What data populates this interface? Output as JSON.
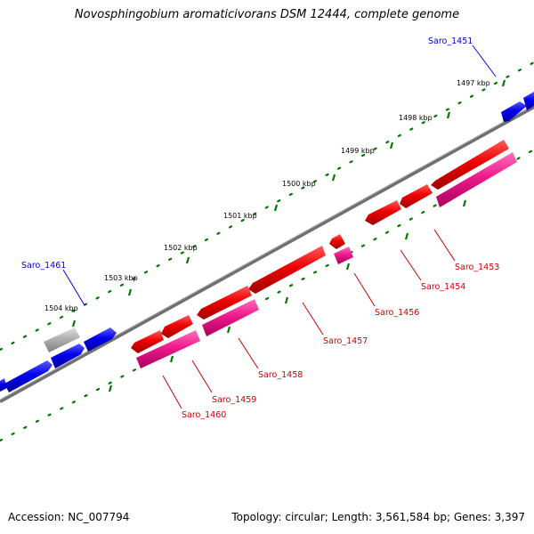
{
  "header": {
    "title": "Novosphingobium aromaticivorans DSM 12444, complete genome"
  },
  "footer": {
    "accession": "Accession: NC_007794",
    "summary": "Topology: circular; Length: 3,561,584 bp; Genes: 3,397"
  },
  "scale_labels": [
    "1497 kbp",
    "1498 kbp",
    "1499 kbp",
    "1500 kbp",
    "1501 kbp",
    "1502 kbp",
    "1503 kbp",
    "1504 kbp"
  ],
  "gene_labels": {
    "saro_1451": "Saro_1451",
    "saro_1461": "Saro_1461",
    "saro_1453": "Saro_1453",
    "saro_1454": "Saro_1454",
    "saro_1456": "Saro_1456",
    "saro_1457": "Saro_1457",
    "saro_1458": "Saro_1458",
    "saro_1459": "Saro_1459",
    "saro_1460": "Saro_1460"
  },
  "colors": {
    "forward_gene": "#0000ee",
    "reverse_gene": "#ee0000",
    "feature_pink": "#ee1a8c",
    "pseudo_gene": "#b0b0b0",
    "backbone": "#808080",
    "ticks": "#007700"
  }
}
